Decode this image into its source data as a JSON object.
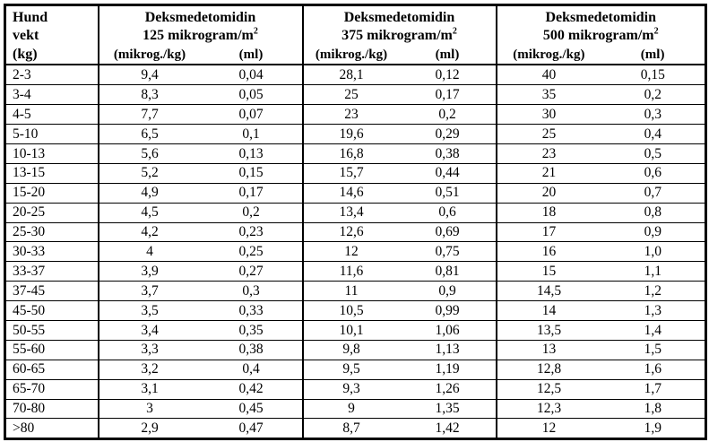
{
  "page": {
    "background": "#ffffff",
    "text_color": "#000000",
    "border_color": "#000000"
  },
  "table": {
    "weight_header_lines": [
      "Hund",
      "vekt",
      "(kg)"
    ],
    "groups": [
      {
        "title": "Deksmedetomidin",
        "dose_line": "125 mikrogram/m",
        "dose_sup": "2",
        "col_dose": "(mikrog./kg)",
        "col_ml": "(ml)"
      },
      {
        "title": "Deksmedetomidin",
        "dose_line": "375 mikrogram/m",
        "dose_sup": "2",
        "col_dose": "(mikrog./kg)",
        "col_ml": "(ml)"
      },
      {
        "title": "Deksmedetomidin",
        "dose_line": "500 mikrogram/m",
        "dose_sup": "2",
        "col_dose": "(mikrog./kg)",
        "col_ml": "(ml)"
      }
    ],
    "rows": [
      [
        "2-3",
        "9,4",
        "0,04",
        "28,1",
        "0,12",
        "40",
        "0,15"
      ],
      [
        "3-4",
        "8,3",
        "0,05",
        "25",
        "0,17",
        "35",
        "0,2"
      ],
      [
        "4-5",
        "7,7",
        "0,07",
        "23",
        "0,2",
        "30",
        "0,3"
      ],
      [
        "5-10",
        "6,5",
        "0,1",
        "19,6",
        "0,29",
        "25",
        "0,4"
      ],
      [
        "10-13",
        "5,6",
        "0,13",
        "16,8",
        "0,38",
        "23",
        "0,5"
      ],
      [
        "13-15",
        "5,2",
        "0,15",
        "15,7",
        "0,44",
        "21",
        "0,6"
      ],
      [
        "15-20",
        "4,9",
        "0,17",
        "14,6",
        "0,51",
        "20",
        "0,7"
      ],
      [
        "20-25",
        "4,5",
        "0,2",
        "13,4",
        "0,6",
        "18",
        "0,8"
      ],
      [
        "25-30",
        "4,2",
        "0,23",
        "12,6",
        "0,69",
        "17",
        "0,9"
      ],
      [
        "30-33",
        "4",
        "0,25",
        "12",
        "0,75",
        "16",
        "1,0"
      ],
      [
        "33-37",
        "3,9",
        "0,27",
        "11,6",
        "0,81",
        "15",
        "1,1"
      ],
      [
        "37-45",
        "3,7",
        "0,3",
        "11",
        "0,9",
        "14,5",
        "1,2"
      ],
      [
        "45-50",
        "3,5",
        "0,33",
        "10,5",
        "0,99",
        "14",
        "1,3"
      ],
      [
        "50-55",
        "3,4",
        "0,35",
        "10,1",
        "1,06",
        "13,5",
        "1,4"
      ],
      [
        "55-60",
        "3,3",
        "0,38",
        "9,8",
        "1,13",
        "13",
        "1,5"
      ],
      [
        "60-65",
        "3,2",
        "0,4",
        "9,5",
        "1,19",
        "12,8",
        "1,6"
      ],
      [
        "65-70",
        "3,1",
        "0,42",
        "9,3",
        "1,26",
        "12,5",
        "1,7"
      ],
      [
        "70-80",
        "3",
        "0,45",
        "9",
        "1,35",
        "12,3",
        "1,8"
      ],
      [
        ">80",
        "2,9",
        "0,47",
        "8,7",
        "1,42",
        "12",
        "1,9"
      ]
    ]
  }
}
